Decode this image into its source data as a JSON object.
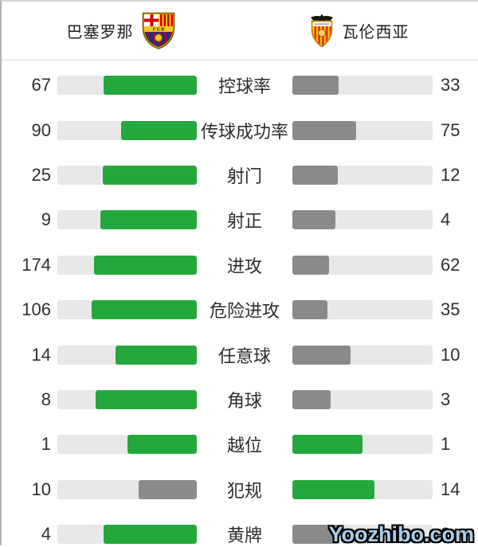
{
  "header": {
    "home_team": "巴塞罗那",
    "away_team": "瓦伦西亚",
    "home_crest_icon": "fc-barcelona-crest",
    "away_crest_icon": "valencia-cf-crest"
  },
  "stats": [
    {
      "label": "控球率",
      "home": 67,
      "away": 33
    },
    {
      "label": "传球成功率",
      "home": 90,
      "away": 75
    },
    {
      "label": "射门",
      "home": 25,
      "away": 12
    },
    {
      "label": "射正",
      "home": 9,
      "away": 4
    },
    {
      "label": "进攻",
      "home": 174,
      "away": 62
    },
    {
      "label": "危险进攻",
      "home": 106,
      "away": 35
    },
    {
      "label": "任意球",
      "home": 14,
      "away": 10
    },
    {
      "label": "角球",
      "home": 8,
      "away": 3
    },
    {
      "label": "越位",
      "home": 1,
      "away": 1
    },
    {
      "label": "犯规",
      "home": 10,
      "away": 14
    },
    {
      "label": "黄牌",
      "home": 4,
      "away": 2
    }
  ],
  "colors": {
    "leading_bar": "#24a83d",
    "trailing_bar": "#8a8a8a",
    "bar_track": "#e8e8e8",
    "text": "#2f2f2f",
    "watermark_fill": "#a9cce9",
    "watermark_outline": "#000000"
  },
  "watermark": {
    "text": "Yoozhibo.com"
  }
}
